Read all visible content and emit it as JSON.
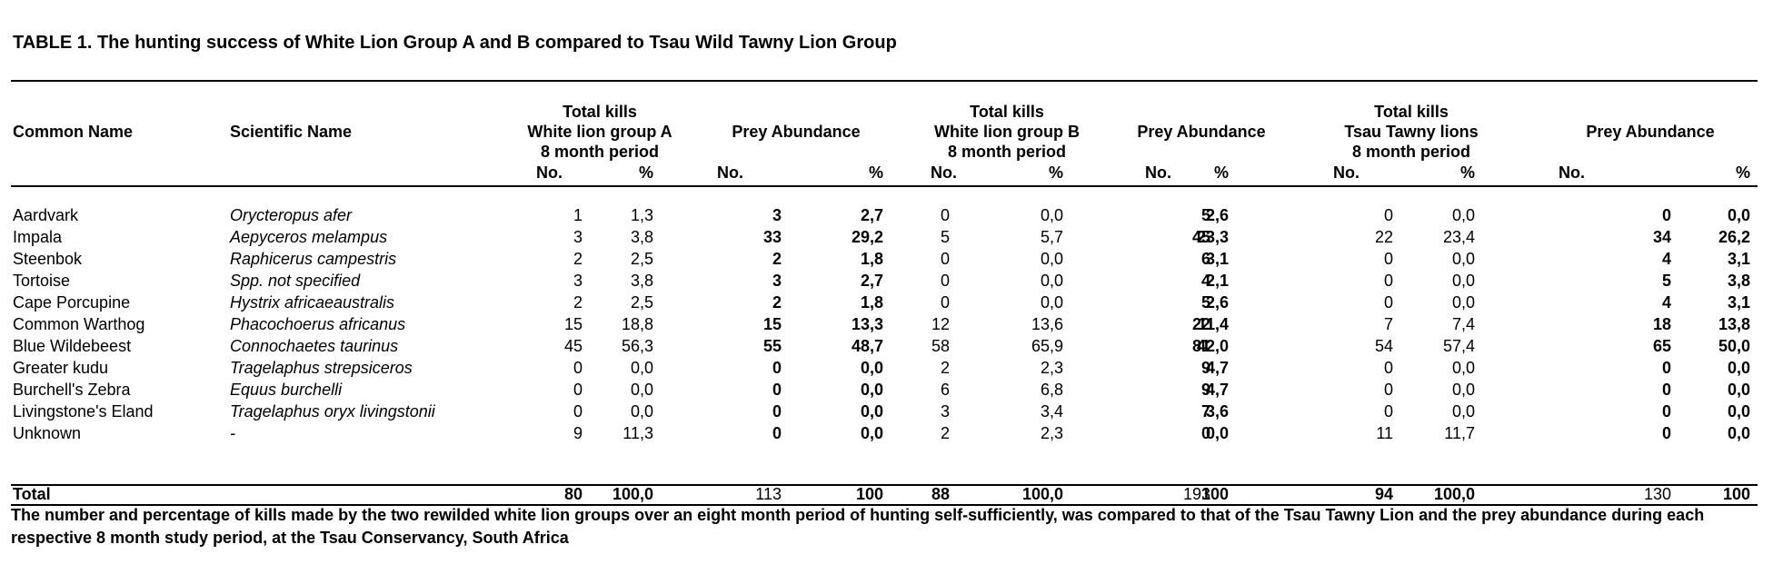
{
  "table": {
    "title": "TABLE 1. The hunting success of White Lion Group A and B compared to Tsau Wild Tawny Lion Group",
    "headers": {
      "common_name": "Common Name",
      "scientific_name": "Scientific Name",
      "group_a": [
        "Total kills",
        "White lion group A",
        "8 month period"
      ],
      "prey_a": "Prey Abundance",
      "group_b": [
        "Total kills",
        "White lion group B",
        "8 month period"
      ],
      "prey_b": "Prey Abundance",
      "tsau": [
        "Total kills",
        "Tsau Tawny lions",
        "8 month period"
      ],
      "prey_tsau": "Prey Abundance",
      "no": "No.",
      "pct": "%"
    },
    "rows": [
      {
        "common": "Aardvark",
        "scientific": "Orycteropus afer",
        "values": [
          "1",
          "1,3",
          "3",
          "2,7",
          "0",
          "0,0",
          "5",
          "2,6",
          "0",
          "0,0",
          "0",
          "0,0"
        ]
      },
      {
        "common": "Impala",
        "scientific": "Aepyceros melampus",
        "values": [
          "3",
          "3,8",
          "33",
          "29,2",
          "5",
          "5,7",
          "45",
          "23,3",
          "22",
          "23,4",
          "34",
          "26,2"
        ]
      },
      {
        "common": "Steenbok",
        "scientific": "Raphicerus campestris",
        "values": [
          "2",
          "2,5",
          "2",
          "1,8",
          "0",
          "0,0",
          "6",
          "3,1",
          "0",
          "0,0",
          "4",
          "3,1"
        ]
      },
      {
        "common": "Tortoise",
        "scientific": "Spp. not specified",
        "values": [
          "3",
          "3,8",
          "3",
          "2,7",
          "0",
          "0,0",
          "4",
          "2,1",
          "0",
          "0,0",
          "5",
          "3,8"
        ]
      },
      {
        "common": "Cape Porcupine",
        "scientific": "Hystrix africaeaustralis",
        "values": [
          "2",
          "2,5",
          "2",
          "1,8",
          "0",
          "0,0",
          "5",
          "2,6",
          "0",
          "0,0",
          "4",
          "3,1"
        ]
      },
      {
        "common": "Common Warthog",
        "scientific": "Phacochoerus africanus",
        "values": [
          "15",
          "18,8",
          "15",
          "13,3",
          "12",
          "13,6",
          "22",
          "11,4",
          "7",
          "7,4",
          "18",
          "13,8"
        ]
      },
      {
        "common": "Blue Wildebeest",
        "scientific": "Connochaetes taurinus",
        "values": [
          "45",
          "56,3",
          "55",
          "48,7",
          "58",
          "65,9",
          "81",
          "42,0",
          "54",
          "57,4",
          "65",
          "50,0"
        ]
      },
      {
        "common": "Greater kudu",
        "scientific": "Tragelaphus strepsiceros",
        "values": [
          "0",
          "0,0",
          "0",
          "0,0",
          "2",
          "2,3",
          "9",
          "4,7",
          "0",
          "0,0",
          "0",
          "0,0"
        ]
      },
      {
        "common": "Burchell's Zebra",
        "scientific": "Equus burchelli",
        "values": [
          "0",
          "0,0",
          "0",
          "0,0",
          "6",
          "6,8",
          "9",
          "4,7",
          "0",
          "0,0",
          "0",
          "0,0"
        ]
      },
      {
        "common": "Livingstone's Eland",
        "scientific": "Tragelaphus oryx livingstonii",
        "values": [
          "0",
          "0,0",
          "0",
          "0,0",
          "3",
          "3,4",
          "7",
          "3,6",
          "0",
          "0,0",
          "0",
          "0,0"
        ]
      },
      {
        "common": "Unknown",
        "scientific": "-",
        "values": [
          "9",
          "11,3",
          "0",
          "0,0",
          "2",
          "2,3",
          "0",
          "0,0",
          "11",
          "11,7",
          "0",
          "0,0"
        ]
      }
    ],
    "total": {
      "label": "Total",
      "values": [
        "80",
        "100,0",
        "113",
        "100",
        "88",
        "100,0",
        "193",
        "100",
        "94",
        "100,0",
        "130",
        "100"
      ]
    },
    "caption": "The number and percentage of kills made by the two rewilded white lion groups over an eight month period of hunting self-sufficiently, was compared to that of the Tsau Tawny Lion and the prey abundance during each respective 8 month study period, at the Tsau Conservancy, South Africa"
  }
}
